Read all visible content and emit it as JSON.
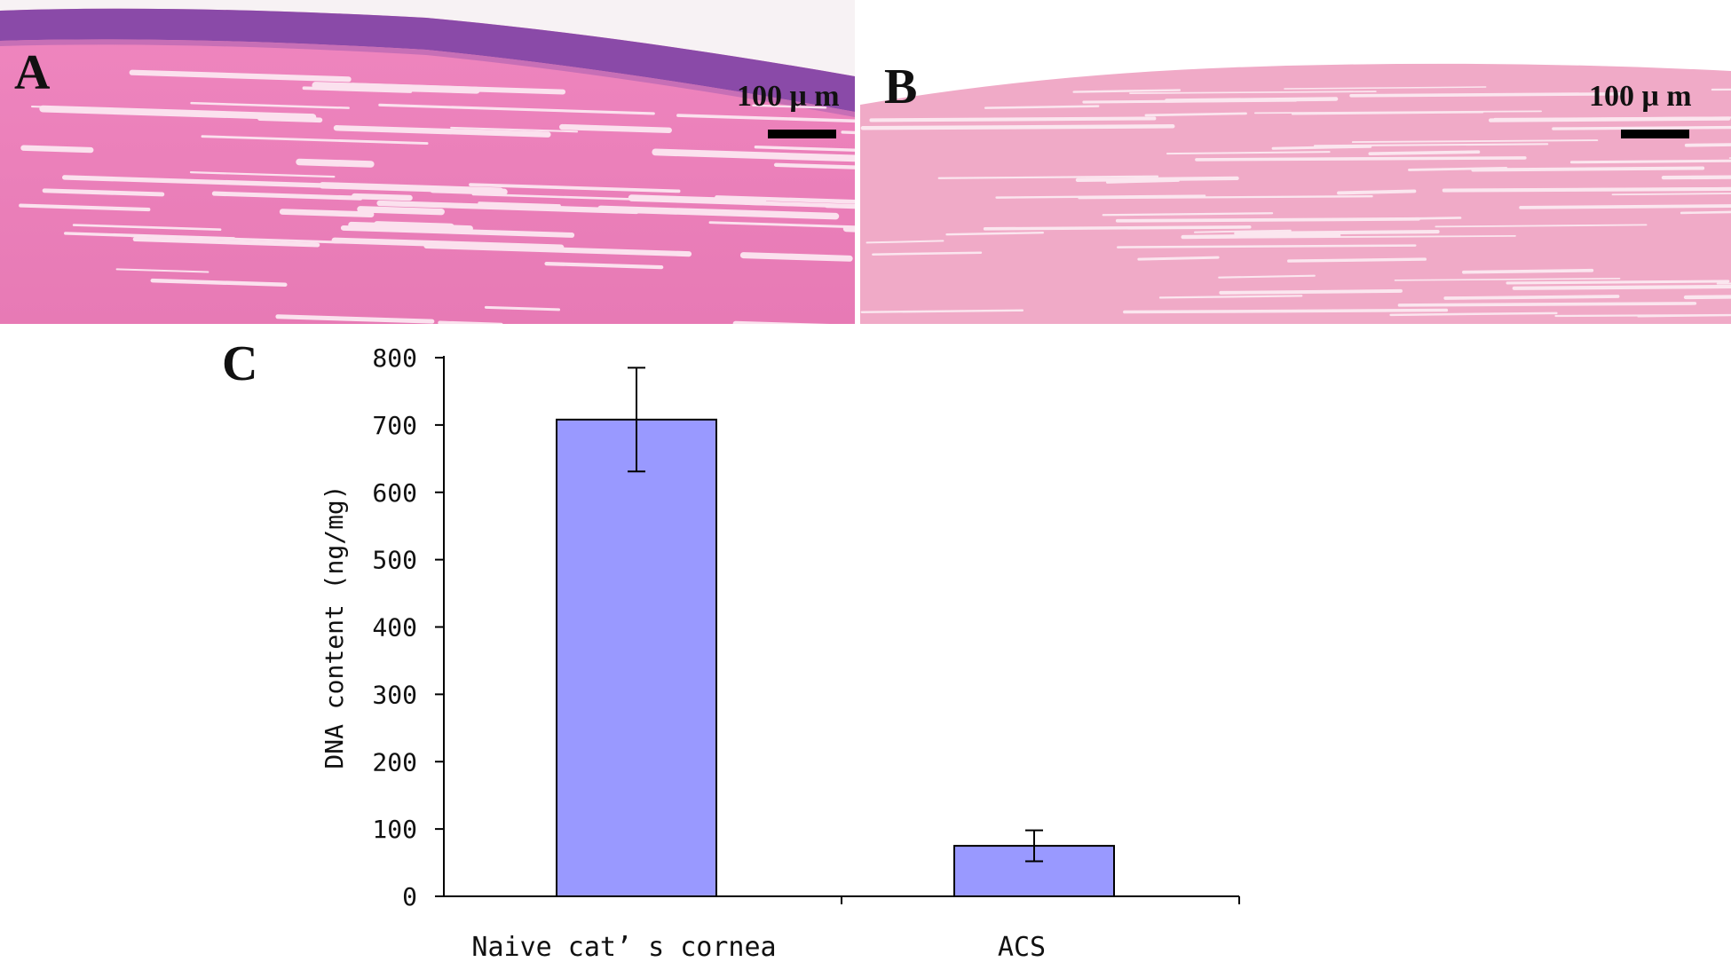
{
  "panels": {
    "a": {
      "letter": "A",
      "scale_label": "100 μ m"
    },
    "b": {
      "letter": "B",
      "scale_label": "100 μ m"
    },
    "c": {
      "letter": "C"
    }
  },
  "colors": {
    "bar": "#9999ff",
    "tissue_a": "#e879b7",
    "tissue_b": "#f0a9c8",
    "epithelium": "#7a3f9a"
  },
  "chart_data": {
    "type": "bar",
    "title": "",
    "xlabel": "",
    "ylabel": "DNA content (ng/mg)",
    "categories": [
      "Naive cat’ s cornea",
      "ACS"
    ],
    "series": [
      {
        "values": [
          708,
          75
        ],
        "error": [
          77,
          23
        ]
      }
    ],
    "ylim": [
      0,
      800
    ],
    "yticks": [
      0,
      100,
      200,
      300,
      400,
      500,
      600,
      700,
      800
    ],
    "grid": false
  }
}
